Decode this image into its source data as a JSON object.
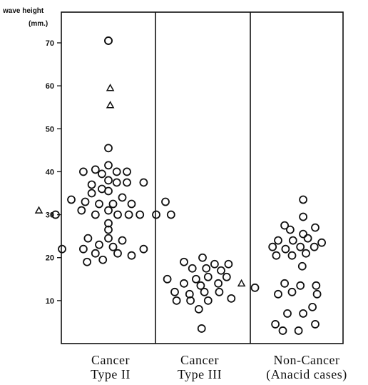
{
  "chart_data": {
    "type": "scatter",
    "ylabel": "wave height",
    "yunit": "(mm.)",
    "ylim": [
      0,
      76
    ],
    "yticks": [
      10,
      20,
      30,
      40,
      50,
      60,
      70
    ],
    "ytick_labels": [
      "10",
      "20",
      "30",
      "40",
      "50",
      "60",
      "70"
    ],
    "grid": false,
    "categories": [
      {
        "line1": "Cancer",
        "line2": "Type II"
      },
      {
        "line1": "Cancer",
        "line2": "Type III"
      },
      {
        "line1": "Non-Cancer",
        "line2": "(Anacid cases)"
      }
    ],
    "series": [
      {
        "marker": "circle",
        "points": [
          [
            1,
            70.5
          ],
          [
            1,
            70.5
          ],
          [
            1,
            45.5
          ],
          [
            1,
            41.5
          ],
          [
            0.73,
            40
          ],
          [
            0.86,
            40.5
          ],
          [
            0.93,
            39.5
          ],
          [
            1.09,
            40
          ],
          [
            1.2,
            40
          ],
          [
            0.82,
            37
          ],
          [
            1,
            38
          ],
          [
            1.09,
            37.5
          ],
          [
            1.2,
            37.5
          ],
          [
            1.38,
            37.5
          ],
          [
            0.93,
            36
          ],
          [
            0.82,
            35
          ],
          [
            1,
            35.5
          ],
          [
            1.15,
            34
          ],
          [
            0.6,
            33.5
          ],
          [
            0.75,
            33
          ],
          [
            0.9,
            32.5
          ],
          [
            1.05,
            32.5
          ],
          [
            1.25,
            32.5
          ],
          [
            1.6,
            33
          ],
          [
            0.43,
            30
          ],
          [
            0.71,
            31
          ],
          [
            0.86,
            30
          ],
          [
            1,
            31
          ],
          [
            1.1,
            30
          ],
          [
            1.22,
            30
          ],
          [
            1.34,
            30
          ],
          [
            1.5,
            30
          ],
          [
            1.66,
            30
          ],
          [
            1,
            28
          ],
          [
            1,
            26.5
          ],
          [
            1,
            24.5
          ],
          [
            0.78,
            24.5
          ],
          [
            1.15,
            24
          ],
          [
            0.9,
            23
          ],
          [
            0.5,
            22
          ],
          [
            0.73,
            22
          ],
          [
            1.05,
            22.5
          ],
          [
            1.38,
            22
          ],
          [
            0.86,
            21
          ],
          [
            1.1,
            21
          ],
          [
            1.25,
            20.5
          ],
          [
            0.77,
            19
          ],
          [
            0.94,
            19.5
          ],
          [
            2,
            20
          ],
          [
            1.8,
            19
          ],
          [
            1.89,
            17.5
          ],
          [
            2.13,
            18.5
          ],
          [
            2.28,
            18.5
          ],
          [
            2.04,
            17.5
          ],
          [
            2.2,
            17
          ],
          [
            1.62,
            15
          ],
          [
            1.93,
            15
          ],
          [
            2.06,
            15.5
          ],
          [
            2.26,
            15.5
          ],
          [
            1.8,
            14
          ],
          [
            1.98,
            13.5
          ],
          [
            2.17,
            14
          ],
          [
            1.7,
            12
          ],
          [
            1.86,
            11.5
          ],
          [
            2.02,
            12
          ],
          [
            2.18,
            12
          ],
          [
            1.72,
            10
          ],
          [
            1.87,
            10
          ],
          [
            2.06,
            10
          ],
          [
            2.31,
            10.5
          ],
          [
            1.96,
            8
          ],
          [
            1.99,
            3.5
          ],
          [
            3.07,
            33.5
          ],
          [
            3.07,
            29.5
          ],
          [
            2.87,
            27.5
          ],
          [
            3.2,
            27
          ],
          [
            2.93,
            26.5
          ],
          [
            3.07,
            25.5
          ],
          [
            2.8,
            24
          ],
          [
            2.96,
            24
          ],
          [
            3.12,
            24.5
          ],
          [
            2.74,
            22.5
          ],
          [
            2.88,
            22
          ],
          [
            3.04,
            22.5
          ],
          [
            3.19,
            22.5
          ],
          [
            3.27,
            23.5
          ],
          [
            2.78,
            20.5
          ],
          [
            2.95,
            20.5
          ],
          [
            3.1,
            21
          ],
          [
            3.06,
            18
          ],
          [
            2.55,
            13
          ],
          [
            2.87,
            14
          ],
          [
            3.04,
            13.5
          ],
          [
            3.21,
            13.5
          ],
          [
            2.8,
            11.5
          ],
          [
            2.95,
            12
          ],
          [
            3.22,
            11.5
          ],
          [
            3.17,
            8.5
          ],
          [
            3.07,
            7
          ],
          [
            2.9,
            7
          ],
          [
            2.77,
            4.5
          ],
          [
            3.2,
            4.5
          ],
          [
            2.85,
            3
          ],
          [
            3.02,
            3
          ]
        ]
      },
      {
        "marker": "triangle",
        "points": [
          [
            1.02,
            59.5
          ],
          [
            1.02,
            55.5
          ],
          [
            0.25,
            31
          ],
          [
            2.42,
            14
          ]
        ]
      }
    ]
  }
}
